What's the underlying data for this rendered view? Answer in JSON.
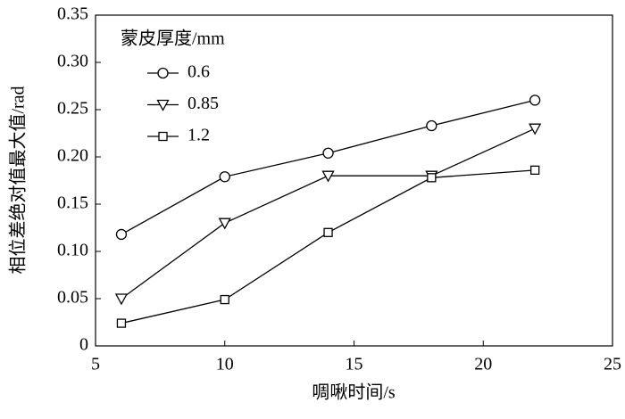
{
  "chart_data": {
    "type": "line",
    "x_label": "啁啾时间/s",
    "y_label": "相位差绝对值最大值/rad",
    "legend_title": "蒙皮厚度/mm",
    "legend_position": "upper left",
    "x": [
      6,
      10,
      14,
      18,
      22
    ],
    "series": [
      {
        "name": "0.6",
        "color": "#000000",
        "marker": "circle",
        "values": [
          0.118,
          0.179,
          0.204,
          0.233,
          0.26
        ]
      },
      {
        "name": "0.85",
        "color": "#000000",
        "marker": "triangle-down",
        "values": [
          0.05,
          0.13,
          0.18,
          0.18,
          0.23
        ]
      },
      {
        "name": "1.2",
        "color": "#000000",
        "marker": "square",
        "values": [
          0.024,
          0.049,
          0.12,
          0.178,
          0.186
        ]
      }
    ],
    "xlim": [
      5,
      25
    ],
    "xticks": [
      5,
      10,
      15,
      20,
      25
    ],
    "ylim": [
      0,
      0.35
    ],
    "yticks": [
      0,
      0.05,
      {
        "value": 0.1,
        "label": "0.10"
      },
      0.15,
      {
        "value": 0.2,
        "label": "0.20"
      },
      0.25,
      {
        "value": 0.3,
        "label": "0.30"
      },
      0.35
    ]
  }
}
